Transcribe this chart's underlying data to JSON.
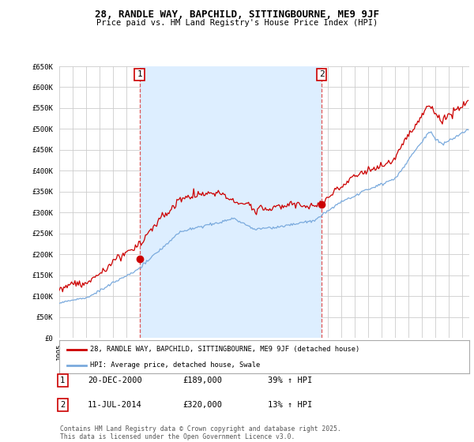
{
  "title": "28, RANDLE WAY, BAPCHILD, SITTINGBOURNE, ME9 9JF",
  "subtitle": "Price paid vs. HM Land Registry's House Price Index (HPI)",
  "ylim": [
    0,
    650000
  ],
  "yticks": [
    0,
    50000,
    100000,
    150000,
    200000,
    250000,
    300000,
    350000,
    400000,
    450000,
    500000,
    550000,
    600000,
    650000
  ],
  "background_color": "#ffffff",
  "grid_color": "#cccccc",
  "sale1_date": 2000.97,
  "sale1_price": 189000,
  "sale2_date": 2014.53,
  "sale2_price": 320000,
  "legend_entry1": "28, RANDLE WAY, BAPCHILD, SITTINGBOURNE, ME9 9JF (detached house)",
  "legend_entry2": "HPI: Average price, detached house, Swale",
  "table_row1": [
    "1",
    "20-DEC-2000",
    "£189,000",
    "39% ↑ HPI"
  ],
  "table_row2": [
    "2",
    "11-JUL-2014",
    "£320,000",
    "13% ↑ HPI"
  ],
  "footer": "Contains HM Land Registry data © Crown copyright and database right 2025.\nThis data is licensed under the Open Government Licence v3.0.",
  "line_color_red": "#cc0000",
  "line_color_blue": "#7aaadd",
  "shade_color": "#ddeeff",
  "vline_color": "#dd4444"
}
